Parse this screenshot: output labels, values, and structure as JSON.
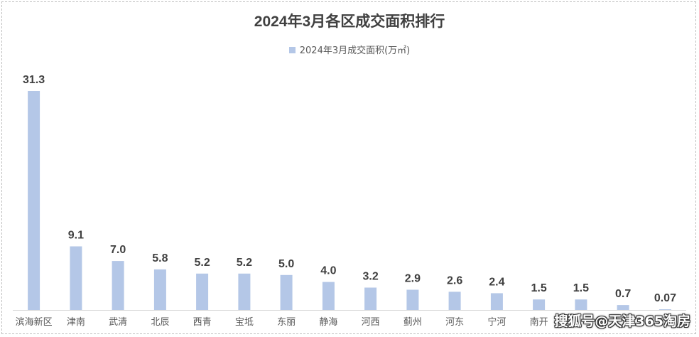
{
  "chart_data": {
    "type": "bar",
    "title": "2024年3月各区成交面积排行",
    "categories": [
      "滨海新区",
      "津南",
      "武清",
      "北辰",
      "西青",
      "宝坻",
      "东丽",
      "静海",
      "河西",
      "蓟州",
      "河东",
      "宁河",
      "南开",
      "红桥",
      "河北",
      "和平"
    ],
    "series": [
      {
        "name": "2024年3月成交面积(万㎡)",
        "values": [
          31.3,
          9.1,
          7.0,
          5.8,
          5.2,
          5.2,
          5.0,
          4.0,
          3.2,
          2.9,
          2.6,
          2.4,
          1.5,
          1.5,
          0.7,
          0.07
        ],
        "value_labels": [
          "31.3",
          "9.1",
          "7.0",
          "5.8",
          "5.2",
          "5.2",
          "5.0",
          "4.0",
          "3.2",
          "2.9",
          "2.6",
          "2.4",
          "1.5",
          "1.5",
          "0.7",
          "0.07"
        ]
      }
    ],
    "visible_category_labels": [
      "滨海新区",
      "津南",
      "武清",
      "北辰",
      "西青",
      "宝坻",
      "东丽",
      "静海",
      "河西",
      "蓟州",
      "河东",
      "宁河",
      "南开",
      "",
      "",
      ""
    ],
    "ylim": [
      0,
      31.3
    ],
    "grid": false,
    "legend_position": "top-center",
    "colors": {
      "bar": "#b4c7e7",
      "label": "#404040",
      "axis": "#d9d9d9"
    }
  },
  "watermark": "搜狐号@天津365淘房"
}
